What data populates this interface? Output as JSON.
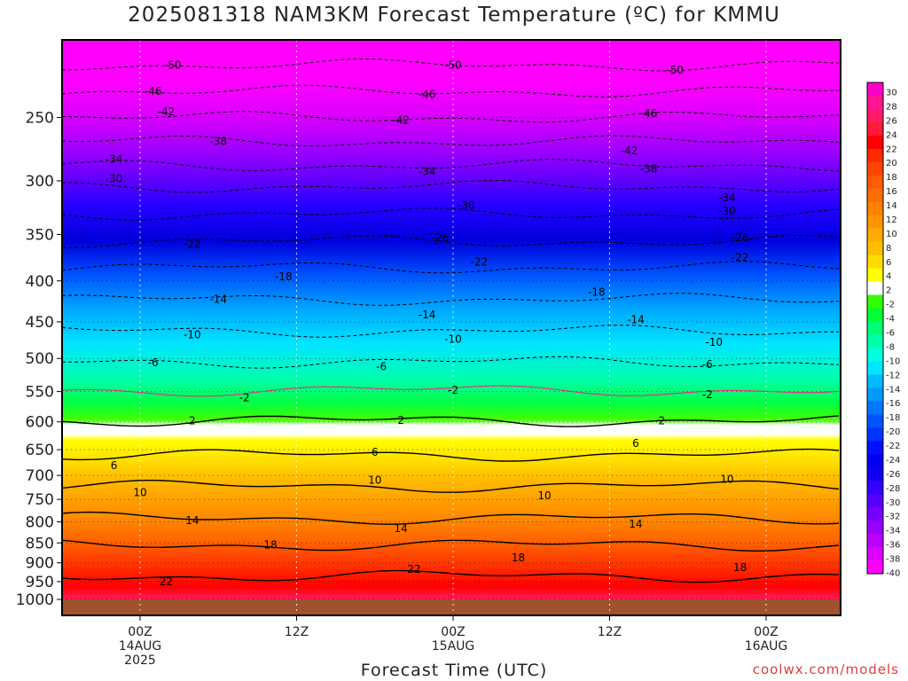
{
  "title": "2025081318 NAM3KM Forecast Temperature (ºC) for KMMU",
  "credit": "coolwx.com/models",
  "chart_data": {
    "type": "heatmap",
    "title": "2025081318 NAM3KM Forecast Temperature (ºC) for KMMU",
    "xlabel": "Forecast Time (UTC)",
    "ylabel": "",
    "y_axis": "pressure (hPa), inverted",
    "ylim": [
      1000,
      200
    ],
    "yticks": [
      250,
      300,
      350,
      400,
      450,
      500,
      550,
      600,
      650,
      700,
      750,
      800,
      850,
      900,
      950,
      1000
    ],
    "xlim_hours": [
      -3,
      57
    ],
    "xticks": [
      {
        "hour": 0,
        "lines": [
          "00Z",
          "14AUG",
          "2025"
        ]
      },
      {
        "hour": 12,
        "lines": [
          "12Z"
        ]
      },
      {
        "hour": 24,
        "lines": [
          "00Z",
          "15AUG"
        ]
      },
      {
        "hour": 36,
        "lines": [
          "12Z"
        ]
      },
      {
        "hour": 48,
        "lines": [
          "00Z",
          "16AUG"
        ]
      }
    ],
    "colorbar": {
      "labels": [
        "30",
        "28",
        "26",
        "24",
        "22",
        "20",
        "18",
        "16",
        "14",
        "12",
        "10",
        "8",
        "6",
        "4",
        "2",
        "-2",
        "-4",
        "-6",
        "-8",
        "-10",
        "-12",
        "-14",
        "-16",
        "-18",
        "-20",
        "-22",
        "-24",
        "-26",
        "-28",
        "-30",
        "-32",
        "-34",
        "-36",
        "-38",
        "-40"
      ],
      "colors": [
        "#ff00c8",
        "#ff1493",
        "#ff1a66",
        "#ff1a3c",
        "#ff0000",
        "#ff2a00",
        "#ff4500",
        "#ff5a00",
        "#ff6e00",
        "#ff8200",
        "#ff9600",
        "#ffaa00",
        "#ffbe00",
        "#ffdc00",
        "#ffff00",
        "#ffffff",
        "#33ff00",
        "#00ff33",
        "#00ff77",
        "#00ffaa",
        "#00ffdd",
        "#00e6ff",
        "#00bbff",
        "#0099ff",
        "#0077ff",
        "#0055ff",
        "#0033ff",
        "#0011ff",
        "#0000ee",
        "#1100ee",
        "#3300ff",
        "#5500ff",
        "#7700ff",
        "#9900ff",
        "#bb00ff",
        "#dd00ff",
        "#ff00ff"
      ]
    },
    "isotherm_levels_hpa": [
      {
        "temp": -50,
        "p": 215
      },
      {
        "temp": -46,
        "p": 232
      },
      {
        "temp": -42,
        "p": 250
      },
      {
        "temp": -38,
        "p": 268
      },
      {
        "temp": -34,
        "p": 287
      },
      {
        "temp": -30,
        "p": 305
      },
      {
        "temp": -26,
        "p": 330
      },
      {
        "temp": -22,
        "p": 357
      },
      {
        "temp": -18,
        "p": 385
      },
      {
        "temp": -14,
        "p": 422
      },
      {
        "temp": -10,
        "p": 462
      },
      {
        "temp": -6,
        "p": 505
      },
      {
        "temp": -2,
        "p": 548
      },
      {
        "temp": 2,
        "p": 598
      },
      {
        "temp": 6,
        "p": 660
      },
      {
        "temp": 10,
        "p": 722
      },
      {
        "temp": 14,
        "p": 792
      },
      {
        "temp": 18,
        "p": 855
      },
      {
        "temp": 22,
        "p": 935
      }
    ],
    "contour_labels": [
      {
        "text": "-50",
        "hour": 2.5,
        "p": 215
      },
      {
        "text": "-50",
        "hour": 24,
        "p": 215
      },
      {
        "text": "-50",
        "hour": 41,
        "p": 218
      },
      {
        "text": "-46",
        "hour": 1,
        "p": 232
      },
      {
        "text": "-46",
        "hour": 22,
        "p": 234
      },
      {
        "text": "-46",
        "hour": 39,
        "p": 247
      },
      {
        "text": "-42",
        "hour": 2,
        "p": 246
      },
      {
        "text": "-42",
        "hour": 20,
        "p": 252
      },
      {
        "text": "-42",
        "hour": 37.5,
        "p": 275
      },
      {
        "text": "-38",
        "hour": 6,
        "p": 268
      },
      {
        "text": "-38",
        "hour": 39,
        "p": 290
      },
      {
        "text": "-34",
        "hour": -2,
        "p": 282
      },
      {
        "text": "-34",
        "hour": 22,
        "p": 292
      },
      {
        "text": "-34",
        "hour": 45,
        "p": 315
      },
      {
        "text": "-30",
        "hour": -2,
        "p": 298
      },
      {
        "text": "-30",
        "hour": 25,
        "p": 322
      },
      {
        "text": "-30",
        "hour": 45,
        "p": 327
      },
      {
        "text": "-26",
        "hour": 23,
        "p": 353
      },
      {
        "text": "-26",
        "hour": 46,
        "p": 353
      },
      {
        "text": "-22",
        "hour": 4,
        "p": 360
      },
      {
        "text": "-22",
        "hour": 26,
        "p": 379
      },
      {
        "text": "-22",
        "hour": 46,
        "p": 374
      },
      {
        "text": "-18",
        "hour": 11,
        "p": 395
      },
      {
        "text": "-18",
        "hour": 35,
        "p": 413
      },
      {
        "text": "-14",
        "hour": 6,
        "p": 422
      },
      {
        "text": "-14",
        "hour": 22,
        "p": 441
      },
      {
        "text": "-14",
        "hour": 38,
        "p": 447
      },
      {
        "text": "-10",
        "hour": 4,
        "p": 467
      },
      {
        "text": "-10",
        "hour": 24,
        "p": 473
      },
      {
        "text": "-10",
        "hour": 44,
        "p": 477
      },
      {
        "text": "-6",
        "hour": 1,
        "p": 506
      },
      {
        "text": "-6",
        "hour": 18.5,
        "p": 512
      },
      {
        "text": "-6",
        "hour": 43.5,
        "p": 509
      },
      {
        "text": "-2",
        "hour": 8,
        "p": 560
      },
      {
        "text": "-2",
        "hour": 24,
        "p": 548
      },
      {
        "text": "-2",
        "hour": 43.5,
        "p": 555
      },
      {
        "text": "2",
        "hour": 4,
        "p": 598
      },
      {
        "text": "2",
        "hour": 20,
        "p": 597
      },
      {
        "text": "2",
        "hour": 40,
        "p": 598
      },
      {
        "text": "6",
        "hour": -2,
        "p": 680
      },
      {
        "text": "6",
        "hour": 18,
        "p": 655
      },
      {
        "text": "6",
        "hour": 38,
        "p": 638
      },
      {
        "text": "10",
        "hour": 0,
        "p": 735
      },
      {
        "text": "10",
        "hour": 18,
        "p": 710
      },
      {
        "text": "10",
        "hour": 31,
        "p": 742
      },
      {
        "text": "10",
        "hour": 45,
        "p": 708
      },
      {
        "text": "14",
        "hour": 4,
        "p": 797
      },
      {
        "text": "14",
        "hour": 20,
        "p": 815
      },
      {
        "text": "14",
        "hour": 38,
        "p": 805
      },
      {
        "text": "18",
        "hour": 10,
        "p": 855
      },
      {
        "text": "18",
        "hour": 29,
        "p": 887
      },
      {
        "text": "18",
        "hour": 46,
        "p": 912
      },
      {
        "text": "22",
        "hour": 2,
        "p": 950
      },
      {
        "text": "22",
        "hour": 21,
        "p": 917
      }
    ]
  }
}
